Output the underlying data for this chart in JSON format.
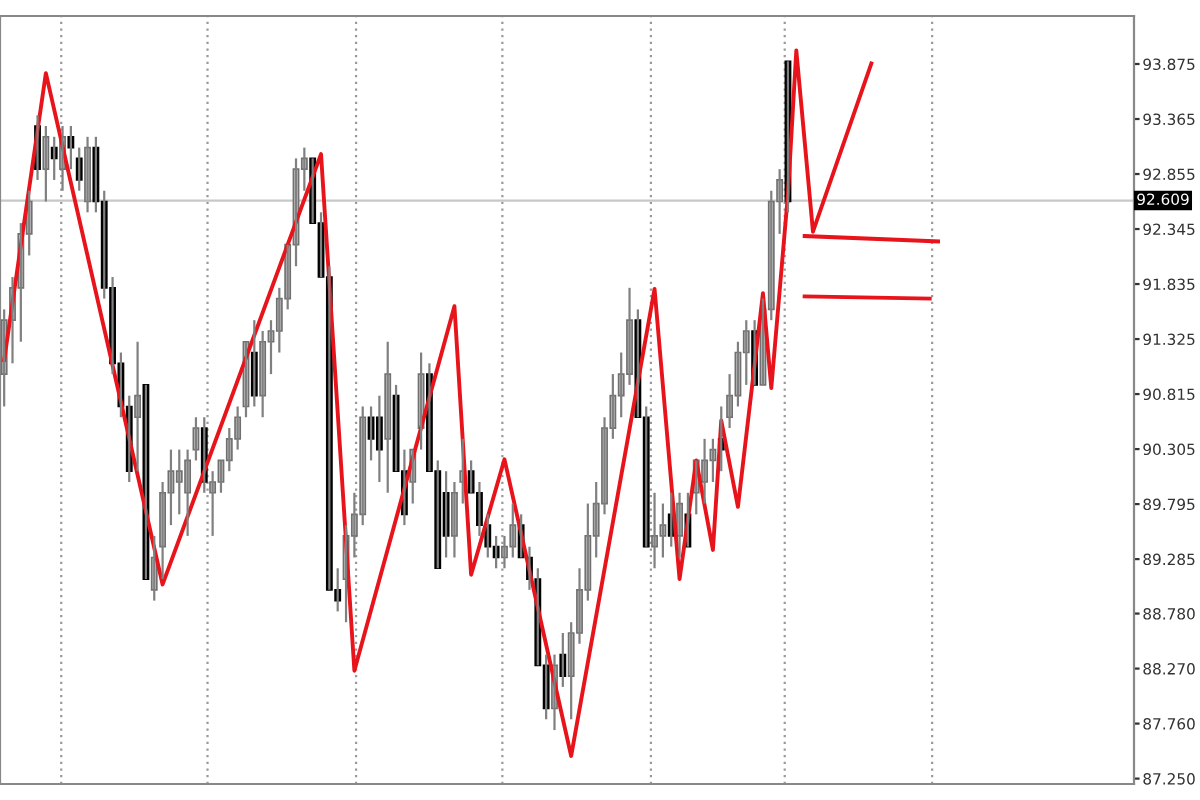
{
  "chart_data": {
    "type": "candlestick",
    "categories": [
      null,
      null,
      null,
      null,
      null,
      null,
      null,
      null,
      null,
      null,
      null,
      null,
      null,
      null,
      null,
      null,
      null,
      null,
      null,
      null,
      null,
      null,
      null,
      null,
      null,
      null,
      null,
      null,
      null,
      null,
      null,
      null,
      null,
      null,
      null,
      null,
      null,
      null,
      null,
      null,
      null,
      null,
      null,
      null,
      null,
      null,
      null,
      null,
      null,
      null,
      null,
      null,
      null,
      null,
      null,
      null,
      null,
      null,
      null,
      null,
      null,
      null,
      null,
      null,
      null,
      null,
      null,
      null,
      null,
      null,
      null,
      null,
      null,
      null,
      null,
      null,
      null,
      null,
      null,
      null,
      null,
      null,
      null,
      null,
      null,
      null,
      null,
      null,
      null,
      null,
      null,
      null,
      null,
      null,
      null,
      null,
      null,
      null,
      null,
      null,
      null,
      null,
      null,
      null,
      null,
      null,
      null,
      null,
      null,
      null,
      null,
      null,
      null,
      null,
      null,
      null,
      null,
      null,
      null,
      null,
      null,
      null,
      null,
      null,
      null,
      null,
      null,
      null,
      null,
      null,
      null,
      null,
      null,
      null,
      null,
      null
    ],
    "ohlc": [
      [
        91.0,
        91.6,
        90.7,
        91.5
      ],
      [
        91.5,
        91.9,
        91.1,
        91.8
      ],
      [
        91.8,
        92.4,
        91.3,
        92.3
      ],
      [
        92.3,
        92.7,
        92.1,
        92.6
      ],
      [
        93.3,
        93.4,
        92.8,
        92.9
      ],
      [
        92.9,
        93.3,
        92.6,
        93.2
      ],
      [
        93.1,
        93.2,
        92.8,
        93.0
      ],
      [
        92.9,
        93.3,
        92.7,
        93.2
      ],
      [
        93.2,
        93.3,
        92.9,
        93.1
      ],
      [
        93.0,
        93.1,
        92.7,
        92.8
      ],
      [
        92.6,
        93.2,
        92.5,
        93.1
      ],
      [
        93.1,
        93.2,
        92.5,
        92.6
      ],
      [
        92.6,
        92.7,
        91.7,
        91.8
      ],
      [
        91.8,
        91.9,
        91.0,
        91.1
      ],
      [
        91.1,
        91.2,
        90.6,
        90.7
      ],
      [
        90.7,
        90.8,
        90.0,
        90.1
      ],
      [
        90.6,
        91.3,
        90.1,
        90.8
      ],
      [
        90.9,
        90.9,
        89.1,
        89.1
      ],
      [
        89.0,
        89.5,
        88.9,
        89.3
      ],
      [
        89.4,
        90.0,
        89.1,
        89.9
      ],
      [
        89.9,
        90.3,
        89.6,
        90.1
      ],
      [
        90.0,
        90.3,
        89.7,
        90.1
      ],
      [
        89.9,
        90.3,
        89.5,
        90.2
      ],
      [
        90.3,
        90.6,
        90.2,
        90.5
      ],
      [
        90.5,
        90.6,
        89.9,
        90.0
      ],
      [
        89.9,
        90.1,
        89.5,
        90.0
      ],
      [
        90.0,
        90.2,
        89.9,
        90.2
      ],
      [
        90.2,
        90.5,
        90.1,
        90.4
      ],
      [
        90.4,
        90.7,
        90.3,
        90.6
      ],
      [
        90.7,
        91.3,
        90.6,
        91.3
      ],
      [
        91.2,
        91.5,
        90.7,
        90.8
      ],
      [
        90.8,
        91.4,
        90.6,
        91.3
      ],
      [
        91.3,
        91.5,
        91.0,
        91.4
      ],
      [
        91.4,
        91.8,
        91.2,
        91.7
      ],
      [
        91.7,
        92.2,
        91.6,
        92.2
      ],
      [
        92.2,
        93.0,
        92.0,
        92.9
      ],
      [
        92.9,
        93.1,
        92.7,
        93.0
      ],
      [
        93.0,
        93.0,
        92.4,
        92.4
      ],
      [
        92.4,
        92.5,
        91.9,
        91.9
      ],
      [
        91.9,
        92.0,
        89.0,
        89.0
      ],
      [
        89.0,
        89.2,
        88.8,
        88.9
      ],
      [
        89.1,
        89.6,
        88.7,
        89.5
      ],
      [
        89.5,
        89.9,
        89.3,
        89.7
      ],
      [
        89.7,
        90.7,
        89.6,
        90.6
      ],
      [
        90.6,
        90.7,
        90.2,
        90.4
      ],
      [
        90.6,
        90.8,
        90.0,
        90.3
      ],
      [
        90.4,
        91.3,
        89.9,
        91.0
      ],
      [
        90.8,
        90.9,
        90.1,
        90.1
      ],
      [
        90.1,
        90.3,
        89.6,
        89.7
      ],
      [
        90.0,
        90.3,
        89.8,
        90.3
      ],
      [
        90.5,
        91.2,
        90.3,
        91.0
      ],
      [
        91.0,
        91.1,
        90.1,
        90.1
      ],
      [
        90.1,
        90.2,
        89.2,
        89.2
      ],
      [
        89.9,
        90.1,
        89.3,
        89.5
      ],
      [
        89.5,
        90.0,
        89.3,
        89.9
      ],
      [
        90.0,
        90.4,
        89.8,
        90.1
      ],
      [
        90.1,
        90.2,
        89.9,
        89.9
      ],
      [
        89.9,
        90.0,
        89.5,
        89.6
      ],
      [
        89.6,
        89.7,
        89.3,
        89.4
      ],
      [
        89.4,
        89.5,
        89.2,
        89.3
      ],
      [
        89.3,
        89.5,
        89.2,
        89.4
      ],
      [
        89.4,
        89.8,
        89.3,
        89.6
      ],
      [
        89.6,
        89.7,
        89.3,
        89.3
      ],
      [
        89.3,
        89.4,
        89.0,
        89.1
      ],
      [
        89.1,
        89.2,
        88.3,
        88.3
      ],
      [
        88.3,
        88.4,
        87.8,
        87.9
      ],
      [
        87.9,
        88.4,
        87.7,
        88.3
      ],
      [
        88.4,
        88.6,
        88.1,
        88.2
      ],
      [
        88.2,
        88.7,
        87.8,
        88.6
      ],
      [
        88.6,
        89.2,
        88.5,
        89.0
      ],
      [
        89.0,
        89.8,
        88.9,
        89.5
      ],
      [
        89.5,
        90.0,
        89.3,
        89.8
      ],
      [
        89.8,
        90.6,
        89.7,
        90.5
      ],
      [
        90.5,
        91.0,
        90.4,
        90.8
      ],
      [
        90.8,
        91.2,
        90.6,
        91.0
      ],
      [
        91.0,
        91.8,
        90.9,
        91.5
      ],
      [
        91.5,
        91.6,
        90.6,
        90.6
      ],
      [
        90.6,
        90.7,
        89.4,
        89.4
      ],
      [
        89.4,
        89.9,
        89.2,
        89.5
      ],
      [
        89.5,
        89.8,
        89.3,
        89.6
      ],
      [
        89.7,
        89.9,
        89.4,
        89.5
      ],
      [
        89.5,
        89.9,
        89.3,
        89.8
      ],
      [
        89.7,
        89.9,
        89.4,
        89.4
      ],
      [
        89.9,
        90.2,
        89.7,
        90.2
      ],
      [
        90.0,
        90.4,
        89.8,
        90.2
      ],
      [
        90.2,
        90.4,
        90.0,
        90.3
      ],
      [
        90.4,
        90.7,
        90.1,
        90.3
      ],
      [
        90.6,
        91.0,
        90.5,
        90.8
      ],
      [
        90.8,
        91.3,
        90.7,
        91.2
      ],
      [
        91.2,
        91.5,
        90.9,
        91.4
      ],
      [
        91.4,
        91.5,
        90.9,
        90.9
      ],
      [
        90.9,
        91.7,
        90.9,
        91.6
      ],
      [
        91.6,
        92.7,
        91.5,
        92.6
      ],
      [
        92.6,
        92.9,
        92.3,
        92.8
      ],
      [
        93.9,
        93.9,
        92.5,
        92.6
      ],
      null,
      null,
      null,
      null,
      null,
      null,
      null,
      null,
      null,
      null,
      null,
      null,
      null,
      null,
      null,
      null,
      null,
      null,
      null,
      null,
      null,
      null,
      null,
      null,
      null,
      null,
      null,
      null,
      null,
      null,
      null,
      null,
      null,
      null,
      null,
      null,
      null,
      null,
      null,
      null,
      null
    ],
    "series": [
      {
        "type": "line",
        "color": "#e8141c",
        "values": [
          91.13,
          null,
          null,
          null,
          null,
          93.79,
          null,
          null,
          null,
          null,
          null,
          null,
          null,
          null,
          null,
          null,
          null,
          null,
          null,
          89.05,
          null,
          null,
          null,
          null,
          null,
          null,
          null,
          null,
          null,
          null,
          null,
          null,
          null,
          null,
          null,
          null,
          null,
          null,
          93.04,
          null,
          null,
          null,
          88.25,
          null,
          null,
          null,
          null,
          null,
          null,
          null,
          null,
          null,
          null,
          null,
          91.63,
          null,
          89.14,
          null,
          null,
          null,
          90.21,
          null,
          null,
          null,
          null,
          null,
          null,
          null,
          87.46,
          null,
          null,
          null,
          null,
          null,
          null,
          null,
          null,
          null,
          91.79,
          null,
          null,
          89.1,
          null,
          90.2,
          null,
          89.37,
          90.57,
          null,
          89.77,
          null,
          null,
          91.75,
          90.87,
          null,
          92.67,
          94.0,
          null,
          92.32,
          null,
          null,
          null,
          null,
          null,
          null,
          93.88,
          null,
          null,
          null,
          null,
          null,
          null,
          null,
          null,
          null,
          null,
          null,
          null,
          null,
          null,
          null,
          null,
          null,
          null,
          null,
          null,
          null,
          null,
          null,
          null,
          null,
          null,
          null,
          null,
          null,
          null,
          null
        ]
      },
      {
        "type": "line",
        "color": "#e8141c",
        "values": [
          null,
          null,
          null,
          null,
          null,
          null,
          null,
          null,
          null,
          null,
          null,
          null,
          null,
          null,
          null,
          null,
          null,
          null,
          null,
          null,
          null,
          null,
          null,
          null,
          null,
          null,
          null,
          null,
          null,
          null,
          null,
          null,
          null,
          null,
          null,
          null,
          null,
          null,
          null,
          null,
          null,
          null,
          null,
          null,
          null,
          null,
          null,
          null,
          null,
          null,
          null,
          null,
          null,
          null,
          null,
          null,
          null,
          null,
          null,
          null,
          null,
          null,
          null,
          null,
          null,
          null,
          null,
          null,
          null,
          null,
          null,
          null,
          null,
          null,
          null,
          null,
          null,
          null,
          null,
          null,
          null,
          null,
          null,
          null,
          null,
          null,
          null,
          null,
          null,
          null,
          null,
          null,
          null,
          null,
          null,
          null,
          92.28,
          null,
          null,
          null,
          null,
          null,
          null,
          null,
          null,
          null,
          null,
          null,
          null,
          null,
          null,
          null,
          92.23,
          null,
          null,
          null,
          null,
          null,
          null,
          null,
          null,
          null,
          null,
          null,
          null,
          null,
          null,
          null,
          null,
          null,
          null,
          null,
          null,
          null,
          null,
          null
        ]
      },
      {
        "type": "line",
        "color": "#e8141c",
        "values": [
          null,
          null,
          null,
          null,
          null,
          null,
          null,
          null,
          null,
          null,
          null,
          null,
          null,
          null,
          null,
          null,
          null,
          null,
          null,
          null,
          null,
          null,
          null,
          null,
          null,
          null,
          null,
          null,
          null,
          null,
          null,
          null,
          null,
          null,
          null,
          null,
          null,
          null,
          null,
          null,
          null,
          null,
          null,
          null,
          null,
          null,
          null,
          null,
          null,
          null,
          null,
          null,
          null,
          null,
          null,
          null,
          null,
          null,
          null,
          null,
          null,
          null,
          null,
          null,
          null,
          null,
          null,
          null,
          null,
          null,
          null,
          null,
          null,
          null,
          null,
          null,
          null,
          null,
          null,
          null,
          null,
          null,
          null,
          null,
          null,
          null,
          null,
          null,
          null,
          null,
          null,
          null,
          null,
          null,
          null,
          null,
          91.72,
          null,
          null,
          null,
          null,
          null,
          null,
          null,
          null,
          null,
          null,
          null,
          null,
          null,
          null,
          91.7,
          null,
          null,
          null,
          null,
          null,
          null,
          null,
          null,
          null,
          null,
          null,
          null,
          null,
          null,
          null,
          null,
          null,
          null,
          null,
          null,
          null,
          null,
          null,
          null
        ]
      }
    ],
    "ylim": [
      87.2,
      94.32
    ],
    "yticks": [
      {
        "value": 93.875,
        "label": "93.875"
      },
      {
        "value": 93.365,
        "label": "93.365"
      },
      {
        "value": 92.855,
        "label": "92.855"
      },
      {
        "value": 92.345,
        "label": "92.345"
      },
      {
        "value": 91.835,
        "label": "91.835"
      },
      {
        "value": 91.325,
        "label": "91.325"
      },
      {
        "value": 90.815,
        "label": "90.815"
      },
      {
        "value": 90.305,
        "label": "90.305"
      },
      {
        "value": 89.795,
        "label": "89.795"
      },
      {
        "value": 89.285,
        "label": "89.285"
      },
      {
        "value": 88.78,
        "label": "88.780"
      },
      {
        "value": 88.27,
        "label": "88.270"
      },
      {
        "value": 87.76,
        "label": "87.760"
      },
      {
        "value": 87.25,
        "label": "87.250"
      }
    ],
    "tick_labels": "y",
    "ref_lines": [
      {
        "axis": "y",
        "value": 92.609,
        "label": "92.609",
        "color": "#c8c8c8"
      }
    ]
  }
}
